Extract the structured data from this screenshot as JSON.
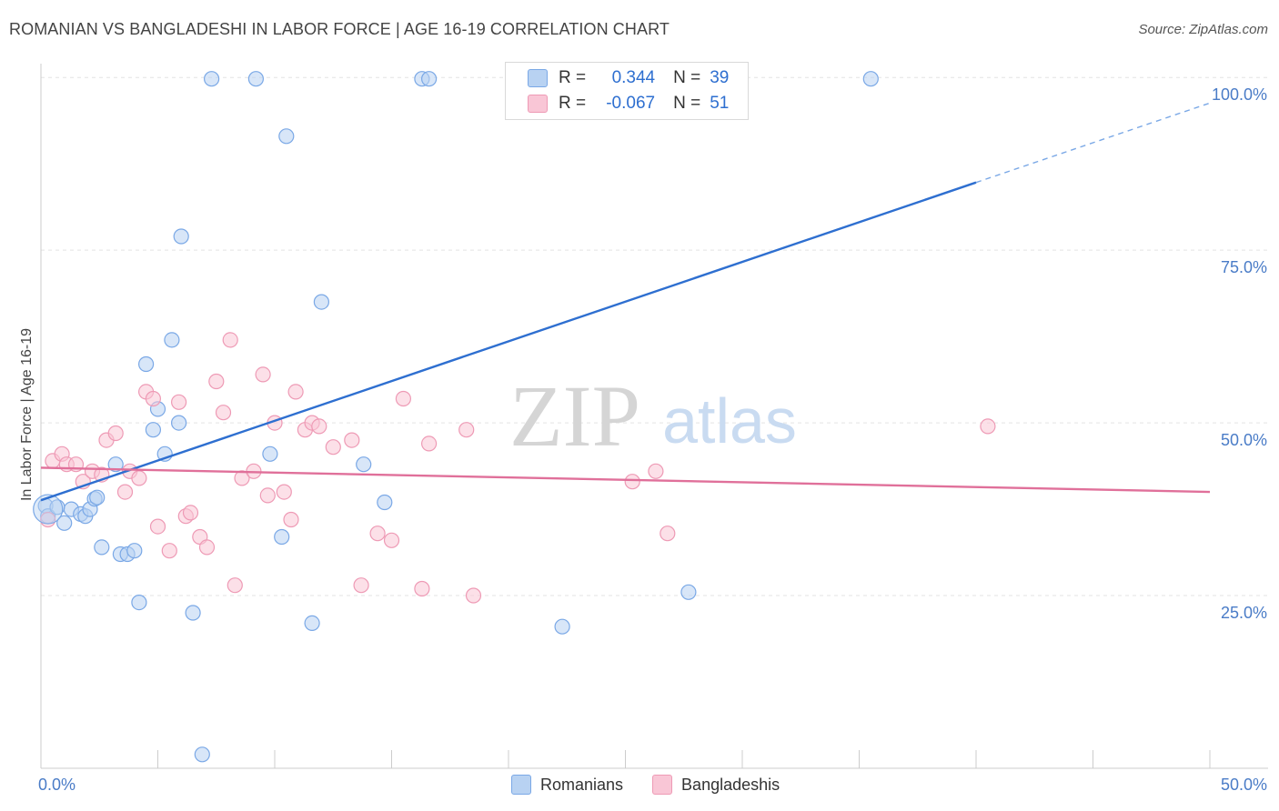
{
  "title": "ROMANIAN VS BANGLADESHI IN LABOR FORCE | AGE 16-19 CORRELATION CHART",
  "source": "Source: ZipAtlas.com",
  "watermark": {
    "zip": "ZIP",
    "atlas": "atlas"
  },
  "legend": {
    "r_label": "R =",
    "n_label": "N =",
    "rows": [
      {
        "name": "Romanians",
        "r": "0.344",
        "n": "39",
        "fill": "#b8d2f2",
        "stroke": "#7aa8e6"
      },
      {
        "name": "Bangladeshis",
        "r": "-0.067",
        "n": "51",
        "fill": "#f9c6d6",
        "stroke": "#ee9ab5"
      }
    ]
  },
  "chart_data": {
    "type": "scatter",
    "title": "ROMANIAN VS BANGLADESHI IN LABOR FORCE | AGE 16-19 CORRELATION CHART",
    "xlabel": "",
    "ylabel": "In Labor Force | Age 16-19",
    "xlim": [
      0,
      50
    ],
    "ylim": [
      0,
      102
    ],
    "x_tick_labels": [
      "0.0%",
      "50.0%"
    ],
    "y_ticks": [
      25,
      50,
      75,
      100
    ],
    "y_tick_labels": [
      "25.0%",
      "50.0%",
      "75.0%",
      "100.0%"
    ],
    "grid": true,
    "series": [
      {
        "name": "Romanians",
        "color": "#7aa8e6",
        "fill": "#b8d2f2",
        "points": [
          [
            0.2,
            38.0
          ],
          [
            0.3,
            36.5
          ],
          [
            0.7,
            37.8
          ],
          [
            1.0,
            35.5
          ],
          [
            1.3,
            37.5
          ],
          [
            1.7,
            36.8
          ],
          [
            1.9,
            36.5
          ],
          [
            2.1,
            37.5
          ],
          [
            2.3,
            39.0
          ],
          [
            2.4,
            39.2
          ],
          [
            2.6,
            32.0
          ],
          [
            3.2,
            44.0
          ],
          [
            3.4,
            31.0
          ],
          [
            3.7,
            31.0
          ],
          [
            4.0,
            31.5
          ],
          [
            4.2,
            24.0
          ],
          [
            4.5,
            58.5
          ],
          [
            4.8,
            49.0
          ],
          [
            5.0,
            52.0
          ],
          [
            5.3,
            45.5
          ],
          [
            5.6,
            62.0
          ],
          [
            5.9,
            50.0
          ],
          [
            6.0,
            77.0
          ],
          [
            6.5,
            22.5
          ],
          [
            6.9,
            2.0
          ],
          [
            7.3,
            99.8
          ],
          [
            9.2,
            99.8
          ],
          [
            9.8,
            45.5
          ],
          [
            10.3,
            33.5
          ],
          [
            10.5,
            91.5
          ],
          [
            11.6,
            21.0
          ],
          [
            12.0,
            67.5
          ],
          [
            13.8,
            44.0
          ],
          [
            14.7,
            38.5
          ],
          [
            16.3,
            99.8
          ],
          [
            16.6,
            99.8
          ],
          [
            22.3,
            20.5
          ],
          [
            27.7,
            25.5
          ],
          [
            35.5,
            99.8
          ]
        ],
        "trend": {
          "x0": 0,
          "y0": 38.8,
          "x1": 40,
          "y1": 84.8,
          "dash_to_x": 50,
          "dash_to_y": 96.3
        }
      },
      {
        "name": "Bangladeshis",
        "color": "#ee9ab5",
        "fill": "#f9c6d6",
        "points": [
          [
            0.3,
            36.0
          ],
          [
            0.5,
            44.5
          ],
          [
            0.9,
            45.5
          ],
          [
            1.1,
            44.0
          ],
          [
            1.5,
            44.0
          ],
          [
            1.8,
            41.5
          ],
          [
            2.2,
            43.0
          ],
          [
            2.6,
            42.5
          ],
          [
            2.8,
            47.5
          ],
          [
            3.2,
            48.5
          ],
          [
            3.6,
            40.0
          ],
          [
            3.8,
            43.0
          ],
          [
            4.2,
            42.0
          ],
          [
            4.5,
            54.5
          ],
          [
            4.8,
            53.5
          ],
          [
            5.0,
            35.0
          ],
          [
            5.5,
            31.5
          ],
          [
            5.9,
            53.0
          ],
          [
            6.2,
            36.5
          ],
          [
            6.4,
            37.0
          ],
          [
            6.8,
            33.5
          ],
          [
            7.1,
            32.0
          ],
          [
            7.5,
            56.0
          ],
          [
            7.8,
            51.5
          ],
          [
            8.1,
            62.0
          ],
          [
            8.3,
            26.5
          ],
          [
            8.6,
            42.0
          ],
          [
            9.1,
            43.0
          ],
          [
            9.5,
            57.0
          ],
          [
            9.7,
            39.5
          ],
          [
            10.0,
            50.0
          ],
          [
            10.4,
            40.0
          ],
          [
            10.7,
            36.0
          ],
          [
            10.9,
            54.5
          ],
          [
            11.3,
            49.0
          ],
          [
            11.6,
            50.0
          ],
          [
            11.9,
            49.5
          ],
          [
            12.5,
            46.5
          ],
          [
            13.3,
            47.5
          ],
          [
            13.7,
            26.5
          ],
          [
            14.4,
            34.0
          ],
          [
            15.0,
            33.0
          ],
          [
            15.5,
            53.5
          ],
          [
            16.3,
            26.0
          ],
          [
            16.6,
            47.0
          ],
          [
            18.2,
            49.0
          ],
          [
            18.5,
            25.0
          ],
          [
            25.3,
            41.5
          ],
          [
            26.3,
            43.0
          ],
          [
            26.8,
            34.0
          ],
          [
            40.5,
            49.5
          ]
        ],
        "trend": {
          "x0": 0,
          "y0": 43.5,
          "x1": 50,
          "y1": 40.0
        }
      }
    ]
  }
}
